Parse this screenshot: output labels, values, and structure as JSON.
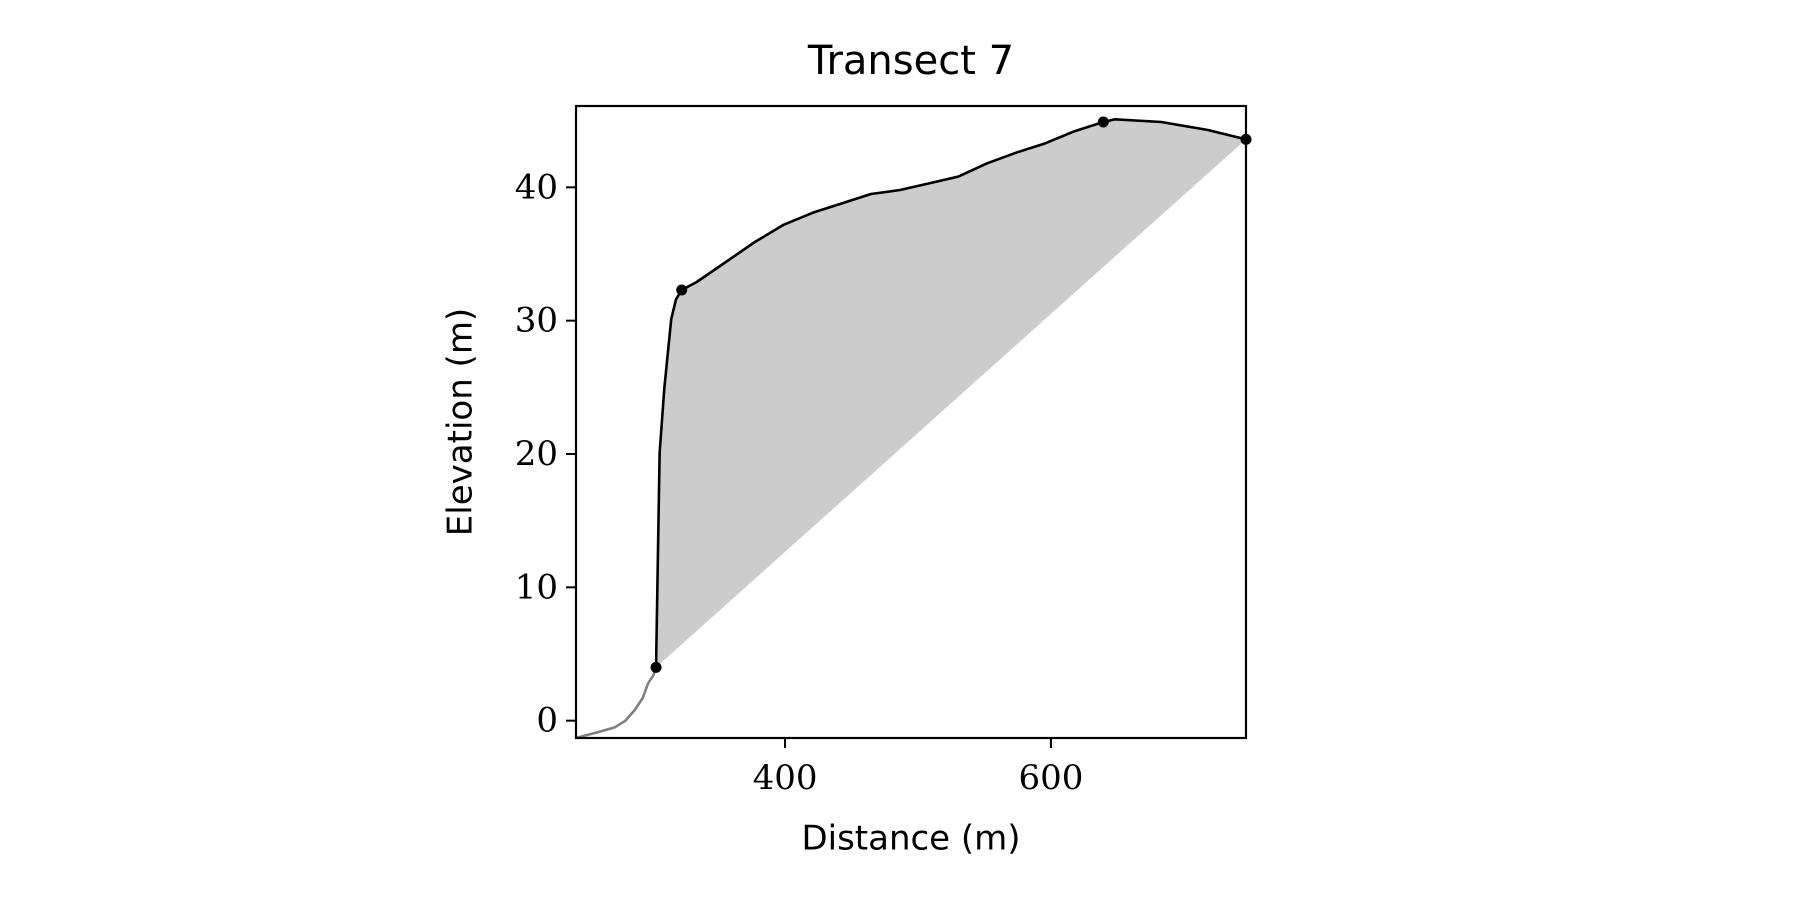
{
  "chart_data": {
    "type": "line",
    "title": "Transect 7",
    "xlabel": "Distance (m)",
    "ylabel": "Elevation (m)",
    "xlim": [
      242.8,
      746.7
    ],
    "ylim": [
      -1.3,
      46.1
    ],
    "xticks": [
      400,
      600
    ],
    "yticks": [
      0,
      10,
      20,
      30,
      40
    ],
    "series": [
      {
        "color": "#808080",
        "style": "line",
        "x": [
          243,
          250,
          258,
          265,
          272,
          280,
          287,
          293,
          297,
          301,
          303
        ],
        "values": [
          -1.3,
          -1.1,
          -0.9,
          -0.7,
          -0.5,
          0.0,
          0.8,
          1.7,
          2.8,
          3.4,
          4.0
        ]
      },
      {
        "color": "#000000",
        "style": "line",
        "fill_color": "#cccccc",
        "x": [
          303,
          305.7,
          309.2,
          314.4,
          318,
          322.3,
          333.6,
          355.5,
          377.3,
          399.1,
          421,
          442.8,
          464.6,
          486.5,
          508.3,
          530.2,
          552,
          573.8,
          595.7,
          617.5,
          639.4,
          648,
          683,
          718,
          746.7
        ],
        "values": [
          4.0,
          20.1,
          24.9,
          30.1,
          31.6,
          32.3,
          32.9,
          34.4,
          35.9,
          37.2,
          38.1,
          38.8,
          39.5,
          39.8,
          40.3,
          40.8,
          41.8,
          42.6,
          43.3,
          44.2,
          44.9,
          45.1,
          44.9,
          44.3,
          43.6
        ]
      },
      {
        "color": "#000000",
        "style": "markers",
        "x": [
          303,
          322.3,
          639.4,
          746.7
        ],
        "values": [
          4.0,
          32.3,
          44.9,
          43.6
        ]
      }
    ]
  }
}
